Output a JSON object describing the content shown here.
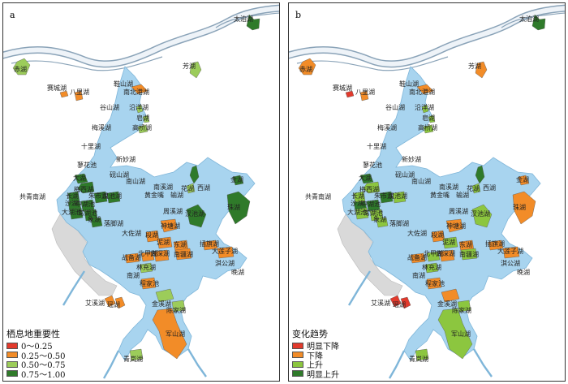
{
  "panels": [
    {
      "id": "a",
      "label": "a",
      "legend": {
        "title": "栖息地重要性",
        "items": [
          {
            "label": "0～0.25",
            "color": "#e23a2c"
          },
          {
            "label": "0.25～0.50",
            "color": "#f28c28"
          },
          {
            "label": "0.50～0.75",
            "color": "#9ccc5a"
          },
          {
            "label": "0.75～1.00",
            "color": "#2f7a2a"
          }
        ]
      }
    },
    {
      "id": "b",
      "label": "b",
      "legend": {
        "title": "变化趋势",
        "items": [
          {
            "label": "明显下降",
            "color": "#e23a2c"
          },
          {
            "label": "下降",
            "color": "#f28c28"
          },
          {
            "label": "上升",
            "color": "#8cc63f"
          },
          {
            "label": "明显上升",
            "color": "#2f7a2a"
          }
        ]
      }
    }
  ],
  "colors": {
    "water": "#a8d4ef",
    "river_edge": "#8aa3b8",
    "tidal": "#d9d9d9"
  },
  "lakes": [
    {
      "name": "太泊湖",
      "a": 3,
      "b": 3
    },
    {
      "name": "赤湖",
      "a": 2,
      "b": 1
    },
    {
      "name": "芳湖",
      "a": 2,
      "b": 1
    },
    {
      "name": "赛城湖",
      "a": 1,
      "b": 0
    },
    {
      "name": "八里湖",
      "a": 1,
      "b": 1
    },
    {
      "name": "鞋山湖",
      "a": null,
      "b": null
    },
    {
      "name": "南北港湖",
      "a": 1,
      "b": 1
    },
    {
      "name": "谷山湖",
      "a": null,
      "b": null
    },
    {
      "name": "沿洋湖",
      "a": 2,
      "b": 2
    },
    {
      "name": "皂湖",
      "a": 2,
      "b": 2
    },
    {
      "name": "梅溪湖",
      "a": null,
      "b": null
    },
    {
      "name": "高桥湖",
      "a": 2,
      "b": 2
    },
    {
      "name": "十里湖",
      "a": null,
      "b": null
    },
    {
      "name": "新妙湖",
      "a": null,
      "b": null
    },
    {
      "name": "蓼花池",
      "a": null,
      "b": null
    },
    {
      "name": "砚山湖",
      "a": null,
      "b": null
    },
    {
      "name": "南山湖",
      "a": null,
      "b": null
    },
    {
      "name": "南溪湖",
      "a": null,
      "b": null
    },
    {
      "name": "花湖",
      "a": 2,
      "b": 2
    },
    {
      "name": "西湖",
      "a": 3,
      "b": 3
    },
    {
      "name": "黄金嘴",
      "a": null,
      "b": null
    },
    {
      "name": "输湖",
      "a": null,
      "b": null
    },
    {
      "name": "金湖",
      "a": 3,
      "b": 1
    },
    {
      "name": "共青南湖",
      "a": null,
      "b": null
    },
    {
      "name": "长湖",
      "a": 3,
      "b": 2
    },
    {
      "name": "梅西湖",
      "a": 3,
      "b": 2
    },
    {
      "name": "沙湖",
      "a": 3,
      "b": 3
    },
    {
      "name": "大湖",
      "a": 3,
      "b": 3
    },
    {
      "name": "中湖池",
      "a": 3,
      "b": 3
    },
    {
      "name": "朱市湖",
      "a": 3,
      "b": 3
    },
    {
      "name": "汉池湖",
      "a": 3,
      "b": 2
    },
    {
      "name": "大湖池",
      "a": 3,
      "b": 2
    },
    {
      "name": "常湖池",
      "a": 3,
      "b": 2
    },
    {
      "name": "象湖",
      "a": 3,
      "b": 2
    },
    {
      "name": "落脚湖",
      "a": null,
      "b": null
    },
    {
      "name": "汊池湖",
      "a": 3,
      "b": 2
    },
    {
      "name": "珠湖",
      "a": 3,
      "b": 1
    },
    {
      "name": "周溪湖",
      "a": null,
      "b": null
    },
    {
      "name": "神塘湖",
      "a": 1,
      "b": 1
    },
    {
      "name": "大佐湖",
      "a": null,
      "b": null
    },
    {
      "name": "段湖",
      "a": 1,
      "b": 1
    },
    {
      "name": "泥湖",
      "a": 1,
      "b": 2
    },
    {
      "name": "东湖",
      "a": 1,
      "b": 1
    },
    {
      "name": "插旗湖",
      "a": 1,
      "b": 1
    },
    {
      "name": "大莲子湖",
      "a": 1,
      "b": 1
    },
    {
      "name": "战备湖",
      "a": 1,
      "b": 1
    },
    {
      "name": "北甲湖",
      "a": 1,
      "b": 2
    },
    {
      "name": "南深湖",
      "a": 1,
      "b": 1
    },
    {
      "name": "南疆湖",
      "a": 1,
      "b": 2
    },
    {
      "name": "淇公湖",
      "a": null,
      "b": null
    },
    {
      "name": "晚湖",
      "a": null,
      "b": null
    },
    {
      "name": "林充湖",
      "a": 2,
      "b": 2
    },
    {
      "name": "南湖",
      "a": null,
      "b": null
    },
    {
      "name": "程家池",
      "a": 1,
      "b": 1
    },
    {
      "name": "艾溪湖",
      "a": 1,
      "b": 0
    },
    {
      "name": "瑶湖",
      "a": 1,
      "b": 0
    },
    {
      "name": "金溪湖",
      "a": 2,
      "b": 1
    },
    {
      "name": "陈家湖",
      "a": 2,
      "b": 2
    },
    {
      "name": "军山湖",
      "a": 1,
      "b": 2
    },
    {
      "name": "青岚湖",
      "a": 2,
      "b": 2
    }
  ]
}
